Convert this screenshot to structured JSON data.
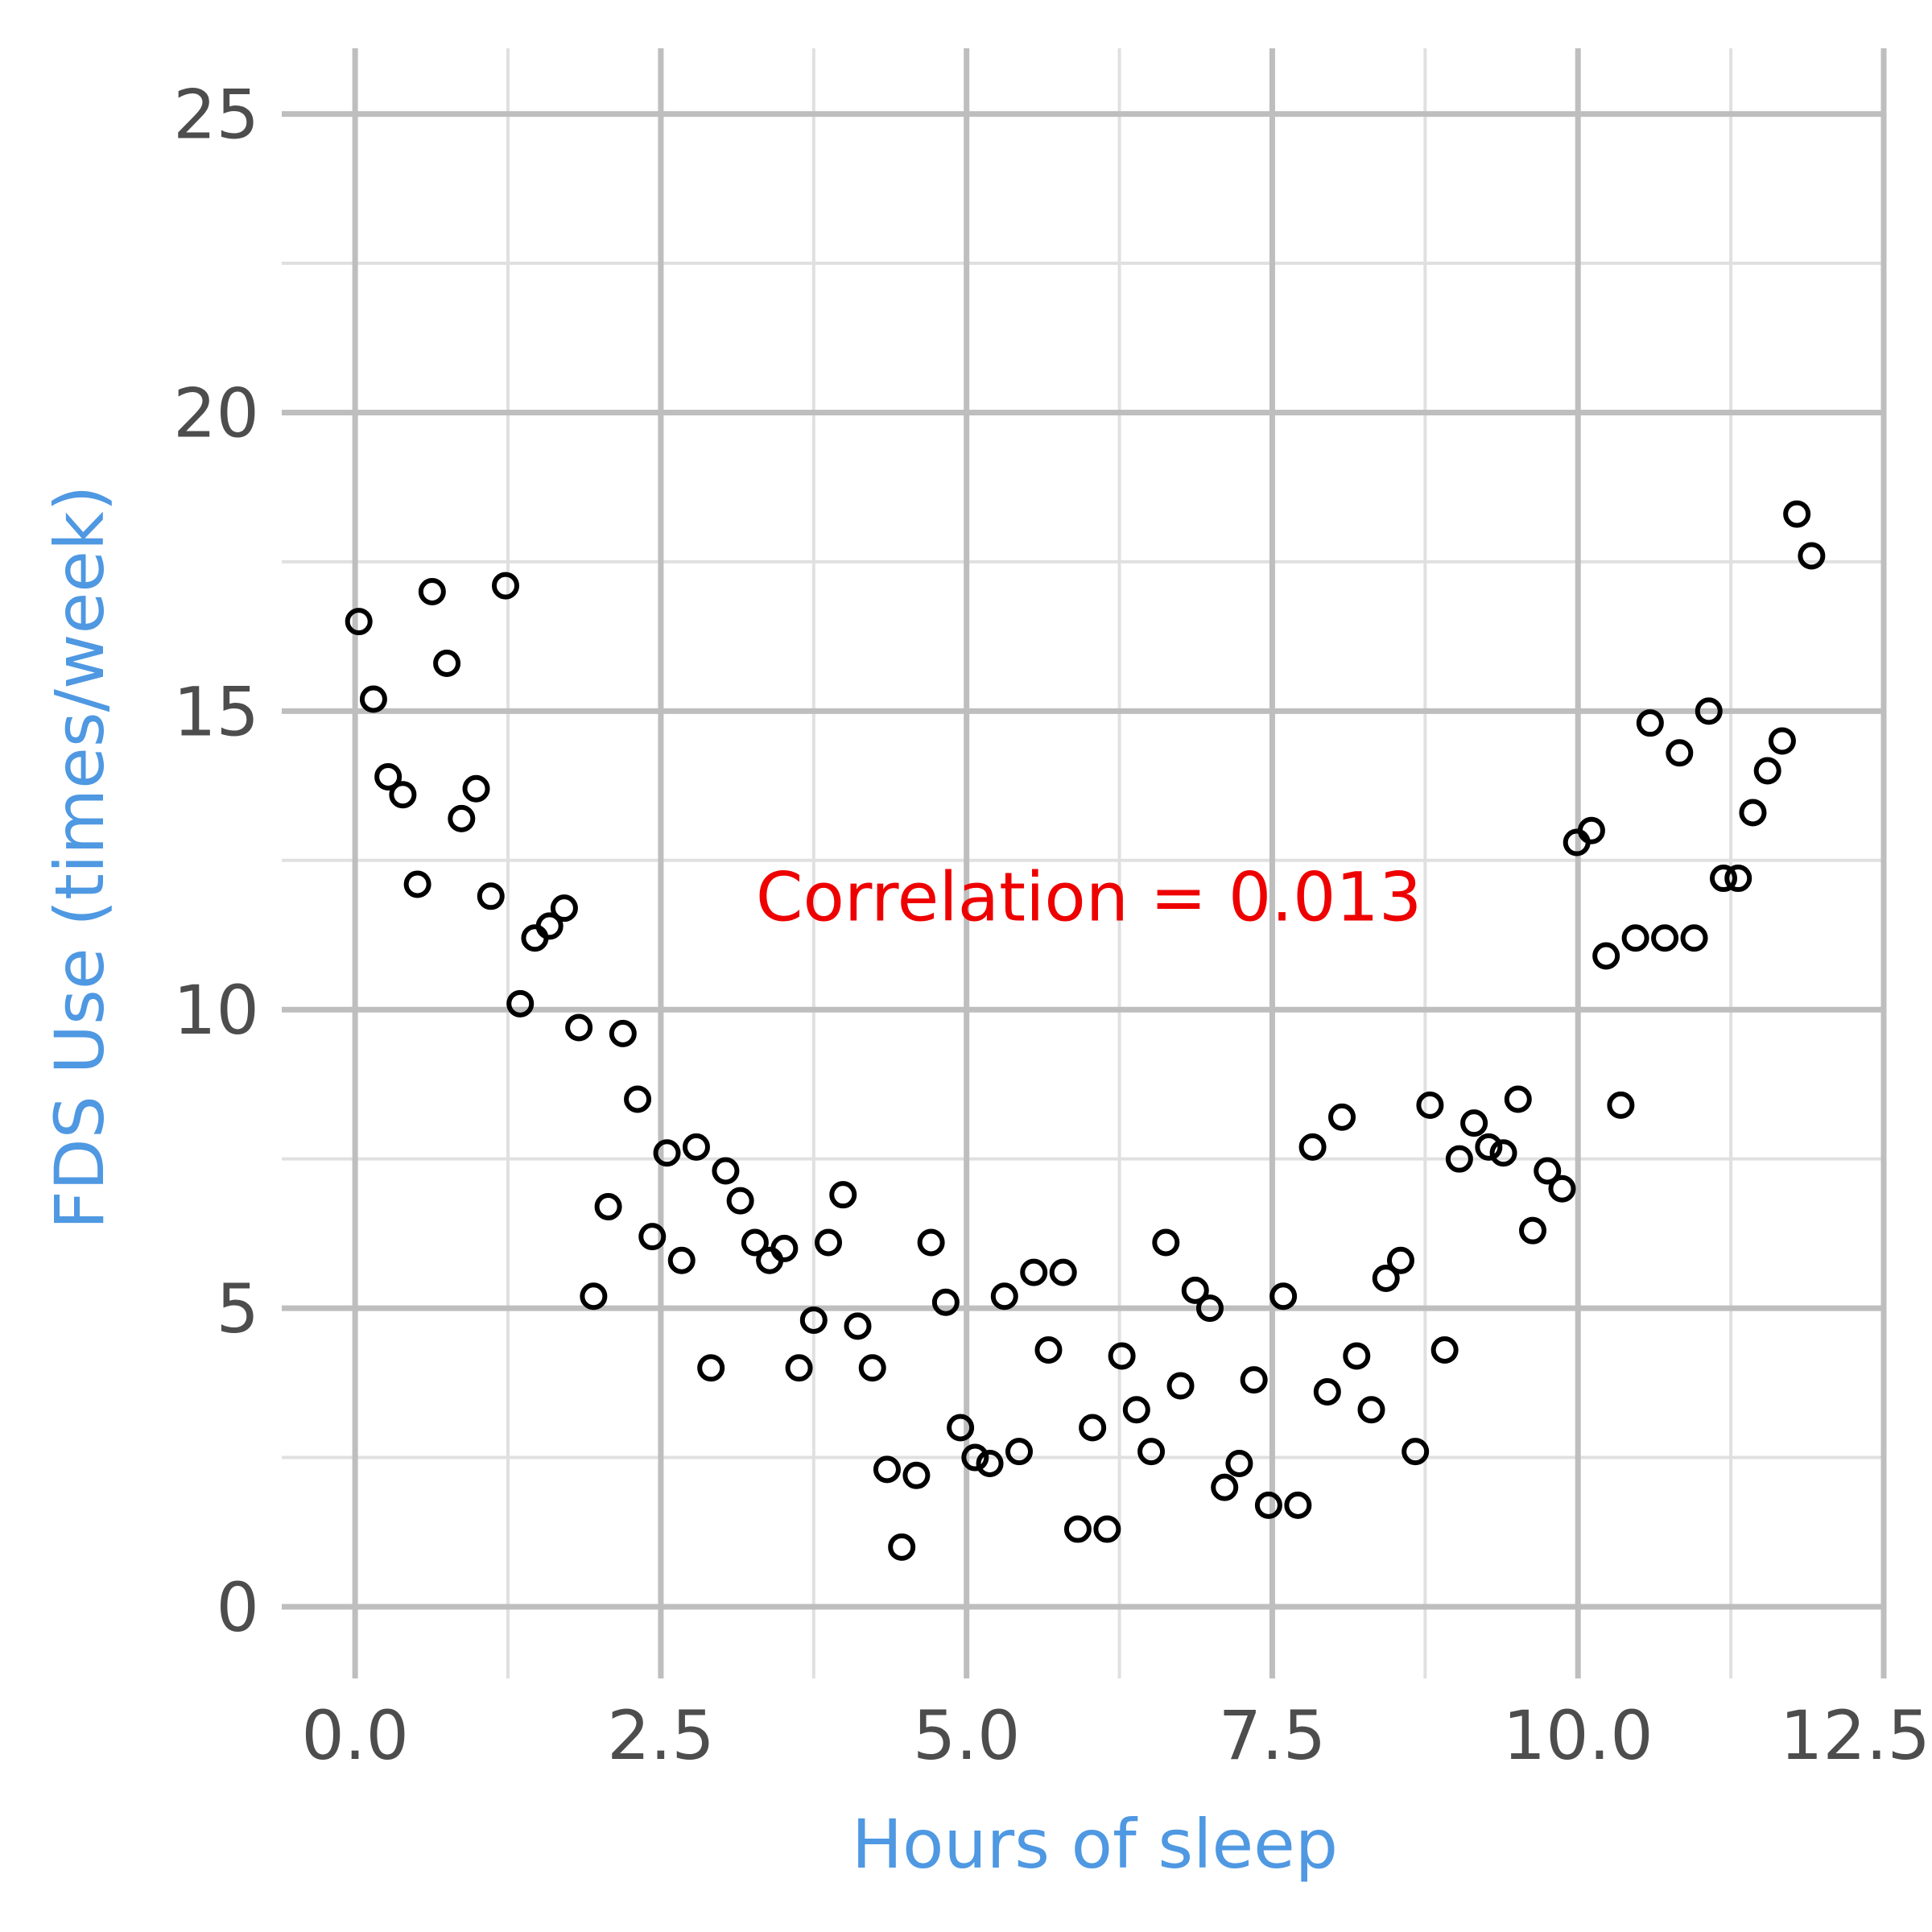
{
  "chart_data": {
    "type": "scatter",
    "title": "",
    "xlabel": "Hours of sleep",
    "ylabel": "FDS Use (times/week)",
    "xlim": [
      -0.6,
      12.5
    ],
    "ylim": [
      -1.2,
      26.1
    ],
    "x_major_ticks": [
      0,
      2.5,
      5,
      7.5,
      10,
      12.5
    ],
    "x_tick_labels": [
      "0.0",
      "2.5",
      "5.0",
      "7.5",
      "10.0",
      "12.5"
    ],
    "x_minor_ticks": [
      1.25,
      3.75,
      6.25,
      8.75,
      11.25
    ],
    "y_major_ticks": [
      0,
      5,
      10,
      15,
      20,
      25
    ],
    "y_tick_labels": [
      "0",
      "5",
      "10",
      "15",
      "20",
      "25"
    ],
    "y_minor_ticks": [
      2.5,
      7.5,
      12.5,
      17.5,
      22.5
    ],
    "grid": true,
    "legend": "none",
    "annotation": {
      "text": "Correlation = 0.013",
      "x": 6.0,
      "y": 11.9,
      "color": "#ee0000"
    },
    "colors": {
      "axis_title": "#4f98e2",
      "tick_label": "#4d4d4d",
      "points": "#000000",
      "grid_major": "#bebebe",
      "grid_minor": "#e0e0e0",
      "annotation": "#ee0000"
    },
    "points": [
      [
        0.03,
        16.5
      ],
      [
        0.15,
        15.2
      ],
      [
        0.27,
        13.9
      ],
      [
        0.39,
        13.6
      ],
      [
        0.51,
        12.1
      ],
      [
        0.63,
        17.0
      ],
      [
        0.75,
        15.8
      ],
      [
        0.87,
        13.2
      ],
      [
        0.99,
        13.7
      ],
      [
        1.11,
        11.9
      ],
      [
        1.23,
        17.1
      ],
      [
        1.35,
        10.1
      ],
      [
        1.47,
        11.2
      ],
      [
        1.59,
        11.4
      ],
      [
        1.71,
        11.7
      ],
      [
        1.83,
        9.7
      ],
      [
        1.95,
        5.2
      ],
      [
        2.07,
        6.7
      ],
      [
        2.19,
        9.6
      ],
      [
        2.31,
        8.5
      ],
      [
        2.43,
        6.2
      ],
      [
        2.55,
        7.6
      ],
      [
        2.67,
        5.8
      ],
      [
        2.79,
        7.7
      ],
      [
        2.91,
        4.0
      ],
      [
        3.03,
        7.3
      ],
      [
        3.15,
        6.8
      ],
      [
        3.27,
        6.1
      ],
      [
        3.39,
        5.8
      ],
      [
        3.51,
        6.0
      ],
      [
        3.63,
        4.0
      ],
      [
        3.75,
        4.8
      ],
      [
        3.87,
        6.1
      ],
      [
        3.99,
        6.9
      ],
      [
        4.11,
        4.7
      ],
      [
        4.23,
        4.0
      ],
      [
        4.35,
        2.3
      ],
      [
        4.47,
        1.0
      ],
      [
        4.59,
        2.2
      ],
      [
        4.71,
        6.1
      ],
      [
        4.83,
        5.1
      ],
      [
        4.95,
        3.0
      ],
      [
        5.07,
        2.5
      ],
      [
        5.19,
        2.4
      ],
      [
        5.31,
        5.2
      ],
      [
        5.43,
        2.6
      ],
      [
        5.55,
        5.6
      ],
      [
        5.67,
        4.3
      ],
      [
        5.79,
        5.6
      ],
      [
        5.91,
        1.3
      ],
      [
        6.03,
        3.0
      ],
      [
        6.15,
        1.3
      ],
      [
        6.27,
        4.2
      ],
      [
        6.39,
        3.3
      ],
      [
        6.51,
        2.6
      ],
      [
        6.63,
        6.1
      ],
      [
        6.75,
        3.7
      ],
      [
        6.87,
        5.3
      ],
      [
        6.99,
        5.0
      ],
      [
        7.11,
        2.0
      ],
      [
        7.23,
        2.4
      ],
      [
        7.35,
        3.8
      ],
      [
        7.47,
        1.7
      ],
      [
        7.59,
        5.2
      ],
      [
        7.71,
        1.7
      ],
      [
        7.83,
        7.7
      ],
      [
        7.95,
        3.6
      ],
      [
        8.07,
        8.2
      ],
      [
        8.19,
        4.2
      ],
      [
        8.31,
        3.3
      ],
      [
        8.43,
        5.5
      ],
      [
        8.55,
        5.8
      ],
      [
        8.67,
        2.6
      ],
      [
        8.79,
        8.4
      ],
      [
        8.91,
        4.3
      ],
      [
        9.03,
        7.5
      ],
      [
        9.15,
        8.1
      ],
      [
        9.27,
        7.7
      ],
      [
        9.39,
        7.6
      ],
      [
        9.51,
        8.5
      ],
      [
        9.63,
        6.3
      ],
      [
        9.75,
        7.3
      ],
      [
        9.87,
        7.0
      ],
      [
        9.99,
        12.8
      ],
      [
        10.11,
        13.0
      ],
      [
        10.23,
        10.9
      ],
      [
        10.35,
        8.4
      ],
      [
        10.47,
        11.2
      ],
      [
        10.59,
        14.8
      ],
      [
        10.71,
        11.2
      ],
      [
        10.83,
        14.3
      ],
      [
        10.95,
        11.2
      ],
      [
        11.07,
        15.0
      ],
      [
        11.19,
        12.2
      ],
      [
        11.31,
        12.2
      ],
      [
        11.43,
        13.3
      ],
      [
        11.55,
        14.0
      ],
      [
        11.67,
        14.5
      ],
      [
        11.79,
        18.3
      ],
      [
        11.91,
        17.6
      ]
    ]
  }
}
